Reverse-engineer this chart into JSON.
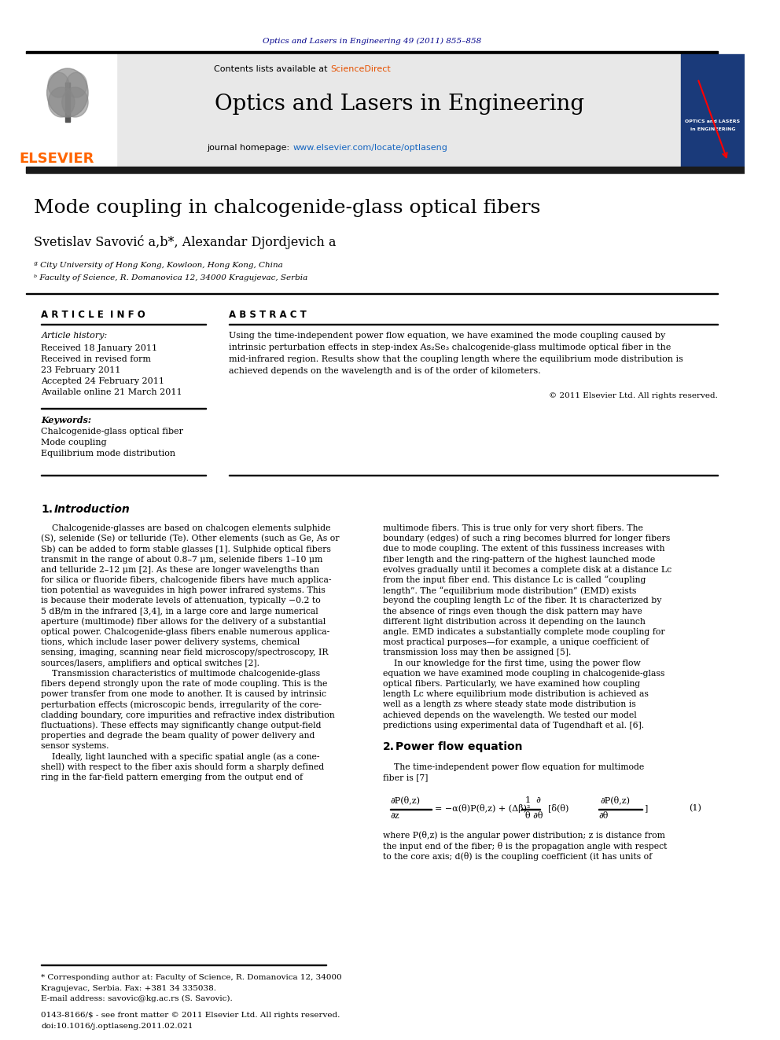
{
  "page_title": "Optics and Lasers in Engineering 49 (2011) 855–858",
  "journal_name": "Optics and Lasers in Engineering",
  "contents_line": "Contents lists available at ScienceDirect",
  "journal_url": "journal homepage: www.elsevier.com/locate/optlaseng",
  "article_title": "Mode coupling in chalcogenide-glass optical fibers",
  "authors": "Svetislav Savović a,b*, Alexandar Djordjevich a",
  "affil_a": "ª City University of Hong Kong, Kowloon, Hong Kong, China",
  "affil_b": "ᵇ Faculty of Science, R. Domanovica 12, 34000 Kragujevac, Serbia",
  "article_info_header": "A R T I C L E  I N F O",
  "abstract_header": "A B S T R A C T",
  "article_history_label": "Article history:",
  "received1": "Received 18 January 2011",
  "received2": "Received in revised form",
  "received2b": "23 February 2011",
  "accepted": "Accepted 24 February 2011",
  "available": "Available online 21 March 2011",
  "keywords_label": "Keywords:",
  "keyword1": "Chalcogenide-glass optical fiber",
  "keyword2": "Mode coupling",
  "keyword3": "Equilibrium mode distribution",
  "copyright": "© 2011 Elsevier Ltd. All rights reserved.",
  "footer_issn": "0143-8166/$ - see front matter © 2011 Elsevier Ltd. All rights reserved.",
  "footer_doi": "doi:10.1016/j.optlaseng.2011.02.021",
  "bg_header_color": "#e8e8e8",
  "sciencedirect_color": "#e65100",
  "url_color": "#1565c0",
  "page_title_color": "#00008B",
  "black_bar_color": "#1a1a1a",
  "elsevier_color": "#FF6600"
}
